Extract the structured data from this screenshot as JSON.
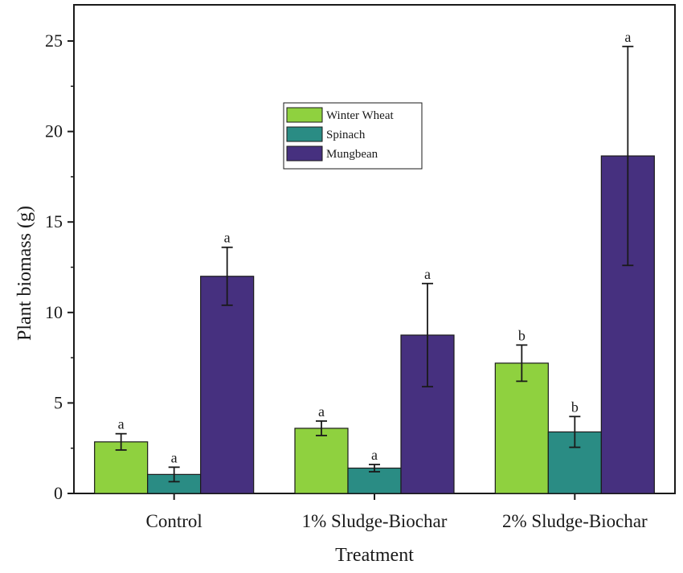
{
  "chart_data": {
    "type": "bar",
    "title": "",
    "xlabel": "Treatment",
    "ylabel": "Plant biomass (g)",
    "ylim": [
      0,
      27
    ],
    "yticks": [
      0,
      5,
      10,
      15,
      20,
      25
    ],
    "categories": [
      "Control",
      "1% Sludge-Biochar",
      "2% Sludge-Biochar"
    ],
    "series": [
      {
        "name": "Winter Wheat",
        "color": "#8fd13f",
        "values": [
          2.85,
          3.6,
          7.2
        ],
        "errors": [
          0.45,
          0.4,
          1.0
        ],
        "sig": [
          "a",
          "a",
          "b"
        ]
      },
      {
        "name": "Spinach",
        "color": "#2a8c84",
        "values": [
          1.05,
          1.4,
          3.4
        ],
        "errors": [
          0.4,
          0.2,
          0.85
        ],
        "sig": [
          "a",
          "a",
          "b"
        ]
      },
      {
        "name": "Mungbean",
        "color": "#46307f",
        "values": [
          12.0,
          8.75,
          18.65
        ],
        "errors": [
          1.6,
          2.85,
          6.05
        ],
        "sig": [
          "a",
          "a",
          "a"
        ]
      }
    ],
    "legend_position": "top-center",
    "grid": false
  }
}
